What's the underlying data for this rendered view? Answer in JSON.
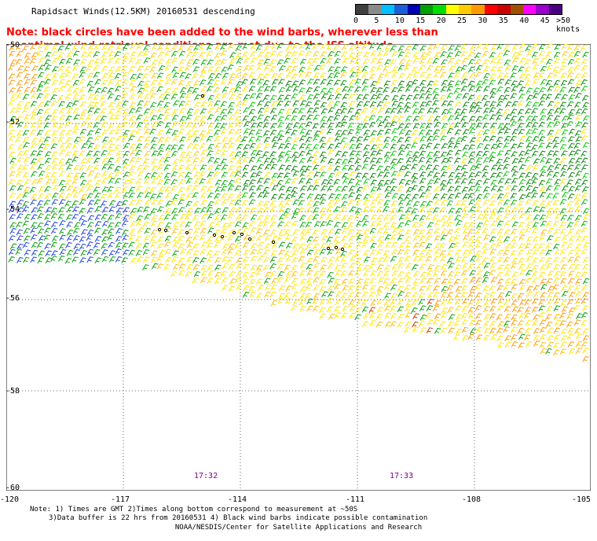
{
  "title": "Rapidsact Winds(12.5KM) 20160531 descending",
  "note": {
    "line1": "Note: black circles have been added to the wind barbs, wherever less than",
    "line2": "optimal wind retrieval conditions are met due to the ISS altitude changes."
  },
  "legend": {
    "labels": [
      "0",
      "5",
      "10",
      "15",
      "20",
      "25",
      "30",
      "35",
      "40",
      "45",
      ">50 knots"
    ],
    "colors": [
      "#3f3f3f",
      "#8a8a8a",
      "#00bfff",
      "#1a5fd6",
      "#0000b4",
      "#00a000",
      "#00dd00",
      "#ffff00",
      "#ffcc00",
      "#ff9900",
      "#ff0000",
      "#cc0000",
      "#a05000",
      "#ff00ff",
      "#9900cc",
      "#4b0082"
    ]
  },
  "map": {
    "lon_range": [
      -120,
      -105
    ],
    "lat_range": [
      -60,
      -50
    ],
    "lat_labels": [
      "-50",
      "-52",
      "-54",
      "-56",
      "-58",
      "-60"
    ],
    "lon_labels": [
      "-120",
      "-117",
      "-114",
      "-111",
      "-108",
      "-105"
    ],
    "times": [
      "17:32",
      "17:33"
    ]
  },
  "footer": {
    "line1": "Note: 1) Times are GMT 2)Times along bottom correspond to measurement at ~50S",
    "line2": "3)Data buffer is 22 hrs from 20160531 4) Black wind barbs indicate possible contamination",
    "credit": "NOAA/NESDIS/Center for Satellite Applications and Research"
  }
}
